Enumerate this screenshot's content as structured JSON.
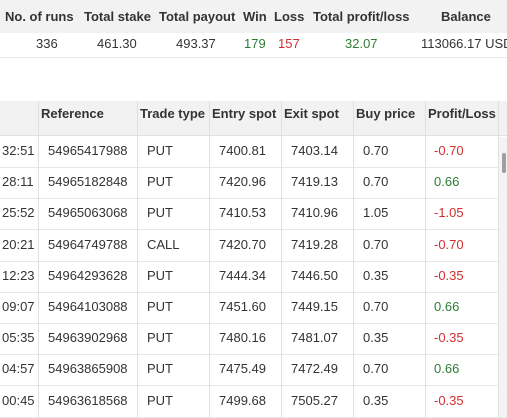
{
  "summary": {
    "headers": [
      "No. of runs",
      "Total stake",
      "Total payout",
      "Win",
      "Loss",
      "Total profit/loss",
      "Balance"
    ],
    "values": {
      "runs": "336",
      "stake": "461.30",
      "payout": "493.37",
      "win": "179",
      "loss": "157",
      "profit": "32.07",
      "balance": "113066.17 USD"
    }
  },
  "table": {
    "headers": [
      "Reference",
      "Trade type",
      "Entry spot",
      "Exit spot",
      "Buy price",
      "Profit/Loss"
    ],
    "rows": [
      {
        "time": "32:51",
        "ref": "54965417988",
        "type": "PUT",
        "entry": "7400.81",
        "exit": "7403.14",
        "buy": "0.70",
        "pl": "-0.70"
      },
      {
        "time": "28:11",
        "ref": "54965182848",
        "type": "PUT",
        "entry": "7420.96",
        "exit": "7419.13",
        "buy": "0.70",
        "pl": "0.66"
      },
      {
        "time": "25:52",
        "ref": "54965063068",
        "type": "PUT",
        "entry": "7410.53",
        "exit": "7410.96",
        "buy": "1.05",
        "pl": "-1.05"
      },
      {
        "time": "20:21",
        "ref": "54964749788",
        "type": "CALL",
        "entry": "7420.70",
        "exit": "7419.28",
        "buy": "0.70",
        "pl": "-0.70"
      },
      {
        "time": "12:23",
        "ref": "54964293628",
        "type": "PUT",
        "entry": "7444.34",
        "exit": "7446.50",
        "buy": "0.35",
        "pl": "-0.35"
      },
      {
        "time": "09:07",
        "ref": "54964103088",
        "type": "PUT",
        "entry": "7451.60",
        "exit": "7449.15",
        "buy": "0.70",
        "pl": "0.66"
      },
      {
        "time": "05:35",
        "ref": "54963902968",
        "type": "PUT",
        "entry": "7480.16",
        "exit": "7481.07",
        "buy": "0.35",
        "pl": "-0.35"
      },
      {
        "time": "04:57",
        "ref": "54963865908",
        "type": "PUT",
        "entry": "7475.49",
        "exit": "7472.49",
        "buy": "0.70",
        "pl": "0.66"
      },
      {
        "time": "00:45",
        "ref": "54963618568",
        "type": "PUT",
        "entry": "7499.68",
        "exit": "7505.27",
        "buy": "0.35",
        "pl": "-0.35"
      }
    ]
  },
  "colors": {
    "positive": "#2e7d32",
    "negative": "#d32f2f",
    "header_bg": "#f2f2f2"
  }
}
